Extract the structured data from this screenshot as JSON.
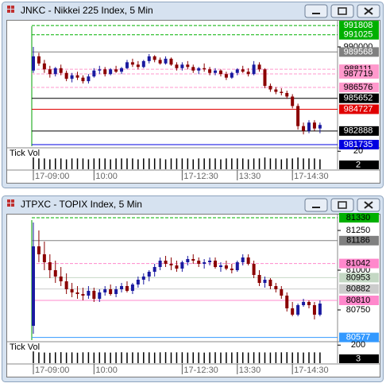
{
  "chart_data": [
    {
      "type": "candlestick",
      "title": "JNKC - Nikkei 225 Index, 5 Min",
      "categories": [
        "17-09:00",
        null,
        null,
        null,
        null,
        null,
        null,
        null,
        null,
        null,
        null,
        "10:00",
        null,
        null,
        null,
        null,
        null,
        null,
        null,
        null,
        null,
        null,
        null,
        null,
        null,
        null,
        null,
        "17-12:30",
        null,
        null,
        null,
        null,
        null,
        null,
        null,
        null,
        null,
        "13:30",
        null,
        null,
        null,
        null,
        null,
        null,
        null,
        null,
        null,
        "17-14:30",
        null,
        null,
        null,
        null,
        null
      ],
      "candles": [
        [
          988000,
          990000,
          987800,
          989200
        ],
        [
          989200,
          989500,
          988400,
          988600
        ],
        [
          988600,
          988900,
          987800,
          988100
        ],
        [
          988100,
          988400,
          987400,
          987700
        ],
        [
          987700,
          988300,
          987500,
          988200
        ],
        [
          988200,
          988500,
          987600,
          987800
        ],
        [
          987800,
          988000,
          987100,
          987300
        ],
        [
          987300,
          987800,
          987000,
          987600
        ],
        [
          987600,
          987900,
          987200,
          987400
        ],
        [
          987400,
          987600,
          986900,
          987100
        ],
        [
          987100,
          987700,
          986900,
          987500
        ],
        [
          987500,
          988200,
          987400,
          988000
        ],
        [
          988000,
          988400,
          987700,
          988100
        ],
        [
          988100,
          988300,
          987500,
          987700
        ],
        [
          987700,
          988200,
          987600,
          988100
        ],
        [
          988100,
          988400,
          987800,
          987900
        ],
        [
          987900,
          988300,
          987700,
          988200
        ],
        [
          988200,
          988900,
          988100,
          988700
        ],
        [
          988700,
          989000,
          988300,
          988500
        ],
        [
          988500,
          988800,
          988100,
          988300
        ],
        [
          988300,
          988900,
          988200,
          988800
        ],
        [
          988800,
          989400,
          988600,
          989200
        ],
        [
          989200,
          989300,
          988700,
          988900
        ],
        [
          988900,
          989100,
          988500,
          988600
        ],
        [
          988600,
          989200,
          988500,
          989000
        ],
        [
          989000,
          989100,
          988400,
          988500
        ],
        [
          988500,
          988700,
          988000,
          988200
        ],
        [
          988200,
          988700,
          988000,
          988500
        ],
        [
          988500,
          988800,
          988100,
          988300
        ],
        [
          988300,
          988500,
          987800,
          988000
        ],
        [
          988000,
          988300,
          987700,
          988200
        ],
        [
          988200,
          988600,
          987900,
          988100
        ],
        [
          988100,
          988300,
          987600,
          987800
        ],
        [
          987800,
          988200,
          987600,
          988000
        ],
        [
          988000,
          988100,
          987500,
          987700
        ],
        [
          987700,
          987900,
          987200,
          987400
        ],
        [
          987400,
          987900,
          987300,
          987800
        ],
        [
          987800,
          988200,
          987600,
          988100
        ],
        [
          988100,
          988400,
          987800,
          987900
        ],
        [
          987900,
          988200,
          987500,
          987700
        ],
        [
          987700,
          988800,
          987600,
          988500
        ],
        [
          988500,
          988700,
          987900,
          988100
        ],
        [
          988100,
          988200,
          986500,
          986700
        ],
        [
          986700,
          986900,
          986200,
          986400
        ],
        [
          986400,
          986600,
          986000,
          986200
        ],
        [
          986200,
          986500,
          985900,
          986100
        ],
        [
          986100,
          986300,
          985600,
          985800
        ],
        [
          985800,
          986000,
          984800,
          985000
        ],
        [
          985000,
          985200,
          983000,
          983300
        ],
        [
          983300,
          983600,
          982600,
          982900
        ],
        [
          982900,
          983800,
          982700,
          983600
        ],
        [
          983600,
          983800,
          982900,
          983100
        ],
        [
          983100,
          983600,
          982700,
          983400
        ]
      ],
      "up_color": "#1a1aa0",
      "down_color": "#8b0000",
      "ylim": [
        981600,
        992150
      ],
      "yticks": [
        990000
      ],
      "levels": [
        {
          "value": 991808,
          "color": "#00b000",
          "text_color": "#ffffff",
          "style": "dashed"
        },
        {
          "value": 991025,
          "color": "#00b000",
          "text_color": "#ffffff",
          "style": "dashed"
        },
        {
          "value": 989568,
          "color": "#808080",
          "text_color": "#ffffff",
          "style": "solid"
        },
        {
          "value": 988111,
          "color": "#ff99cc",
          "text_color": "#000000",
          "style": "dashed"
        },
        {
          "value": 987719,
          "color": "#ff99cc",
          "text_color": "#000000",
          "style": "dashed"
        },
        {
          "value": 986576,
          "color": "#ff99cc",
          "text_color": "#000000",
          "style": "dashed"
        },
        {
          "value": 985652,
          "color": "#000000",
          "text_color": "#ffffff",
          "style": "solid"
        },
        {
          "value": 984727,
          "color": "#e00000",
          "text_color": "#ffffff",
          "style": "solid"
        },
        {
          "value": 982888,
          "color": "#000000",
          "text_color": "#ffffff",
          "style": "solid"
        },
        {
          "value": 981735,
          "color": "#0000e0",
          "text_color": "#ffffff",
          "style": "solid"
        }
      ],
      "volume": {
        "label": "Tick Vol",
        "values": [
          13,
          12,
          12,
          11,
          12,
          12,
          11,
          12,
          12,
          12,
          11,
          12,
          12,
          12,
          11,
          12,
          12,
          12,
          12,
          11,
          12,
          12,
          12,
          12,
          11,
          12,
          12,
          12,
          12,
          11,
          12,
          12,
          12,
          12,
          11,
          12,
          12,
          12,
          12,
          11,
          12,
          12,
          13,
          12,
          12,
          11,
          12,
          12,
          13,
          12,
          12,
          12,
          11
        ],
        "ylim": [
          0,
          22
        ],
        "yticks": [
          20
        ],
        "current": 2
      }
    },
    {
      "type": "candlestick",
      "title": "JTPXC - TOPIX Index, 5 Min",
      "categories": [
        "17-09:00",
        null,
        null,
        null,
        null,
        null,
        null,
        null,
        null,
        null,
        null,
        "10:00",
        null,
        null,
        null,
        null,
        null,
        null,
        null,
        null,
        null,
        null,
        null,
        null,
        null,
        null,
        null,
        "17-12:30",
        null,
        null,
        null,
        null,
        null,
        null,
        null,
        null,
        null,
        "13:30",
        null,
        null,
        null,
        null,
        null,
        null,
        null,
        null,
        null,
        "17-14:30",
        null,
        null,
        null,
        null,
        null
      ],
      "candles": [
        [
          80650,
          81300,
          80600,
          81150
        ],
        [
          81150,
          81250,
          81050,
          81100
        ],
        [
          81100,
          81180,
          81000,
          81050
        ],
        [
          81050,
          81100,
          80950,
          81000
        ],
        [
          81000,
          81060,
          80920,
          80960
        ],
        [
          80960,
          81020,
          80900,
          80930
        ],
        [
          80930,
          80980,
          80850,
          80880
        ],
        [
          80880,
          80920,
          80830,
          80860
        ],
        [
          80860,
          80900,
          80820,
          80850
        ],
        [
          80850,
          80890,
          80810,
          80840
        ],
        [
          80840,
          80900,
          80820,
          80870
        ],
        [
          80870,
          80890,
          80800,
          80820
        ],
        [
          80820,
          80880,
          80800,
          80860
        ],
        [
          80860,
          80900,
          80840,
          80880
        ],
        [
          80880,
          80910,
          80840,
          80850
        ],
        [
          80850,
          80900,
          80830,
          80880
        ],
        [
          80880,
          80920,
          80860,
          80900
        ],
        [
          80900,
          80930,
          80860,
          80870
        ],
        [
          80870,
          80920,
          80850,
          80910
        ],
        [
          80910,
          80960,
          80890,
          80940
        ],
        [
          80940,
          80980,
          80910,
          80960
        ],
        [
          80960,
          81000,
          80930,
          80990
        ],
        [
          80990,
          81040,
          80960,
          81020
        ],
        [
          81020,
          81080,
          81000,
          81060
        ],
        [
          81060,
          81090,
          81020,
          81040
        ],
        [
          81040,
          81080,
          81000,
          81030
        ],
        [
          81030,
          81060,
          80990,
          81010
        ],
        [
          81010,
          81060,
          80990,
          81050
        ],
        [
          81050,
          81090,
          81030,
          81070
        ],
        [
          81070,
          81100,
          81040,
          81060
        ],
        [
          81060,
          81080,
          81020,
          81040
        ],
        [
          81040,
          81070,
          81010,
          81050
        ],
        [
          81050,
          81080,
          81030,
          81060
        ],
        [
          81060,
          81080,
          81010,
          81020
        ],
        [
          81020,
          81050,
          80990,
          81030
        ],
        [
          81030,
          81060,
          81000,
          81010
        ],
        [
          81010,
          81040,
          80980,
          81000
        ],
        [
          81000,
          81060,
          80990,
          81050
        ],
        [
          81050,
          81100,
          81030,
          81080
        ],
        [
          81080,
          81100,
          81030,
          81040
        ],
        [
          81040,
          81060,
          80950,
          80970
        ],
        [
          80970,
          81000,
          80900,
          80920
        ],
        [
          80920,
          80960,
          80890,
          80940
        ],
        [
          80940,
          80950,
          80880,
          80900
        ],
        [
          80900,
          80920,
          80860,
          80880
        ],
        [
          80880,
          80900,
          80820,
          80840
        ],
        [
          80840,
          80860,
          80740,
          80760
        ],
        [
          80760,
          80800,
          80710,
          80720
        ],
        [
          80720,
          80790,
          80710,
          80780
        ],
        [
          80780,
          80820,
          80770,
          80800
        ],
        [
          80800,
          80810,
          80760,
          80780
        ],
        [
          80780,
          80800,
          80690,
          80720
        ],
        [
          80720,
          80810,
          80710,
          80790
        ]
      ],
      "up_color": "#1a1aa0",
      "down_color": "#8b0000",
      "ylim": [
        80560,
        81345
      ],
      "yticks": [
        81250,
        81000,
        80750
      ],
      "levels": [
        {
          "value": 81330,
          "color": "#00b000",
          "text_color": "#000000",
          "style": "dashed"
        },
        {
          "value": 81186,
          "color": "#808080",
          "text_color": "#000000",
          "style": "solid"
        },
        {
          "value": 81042,
          "color": "#ff88cc",
          "text_color": "#000000",
          "style": "dashed"
        },
        {
          "value": 80953,
          "color": "#c4d8c4",
          "text_color": "#000000",
          "style": "solid"
        },
        {
          "value": 80882,
          "color": "#cccccc",
          "text_color": "#000000",
          "style": "solid"
        },
        {
          "value": 80810,
          "color": "#ff88cc",
          "text_color": "#000000",
          "style": "solid"
        },
        {
          "value": 80577,
          "color": "#3399ff",
          "text_color": "#ffffff",
          "style": "solid"
        }
      ],
      "volume": {
        "label": "Tick Vol",
        "values": [
          130,
          120,
          118,
          115,
          120,
          122,
          118,
          120,
          116,
          120,
          121,
          118,
          120,
          119,
          117,
          120,
          121,
          118,
          120,
          119,
          121,
          120,
          118,
          120,
          122,
          119,
          120,
          121,
          118,
          120,
          119,
          117,
          120,
          121,
          118,
          120,
          119,
          122,
          120,
          118,
          121,
          120,
          119,
          118,
          121,
          120,
          122,
          119,
          120,
          118,
          121,
          120,
          119
        ],
        "ylim": [
          0,
          220
        ],
        "yticks": [
          200
        ],
        "current": 3
      }
    }
  ]
}
